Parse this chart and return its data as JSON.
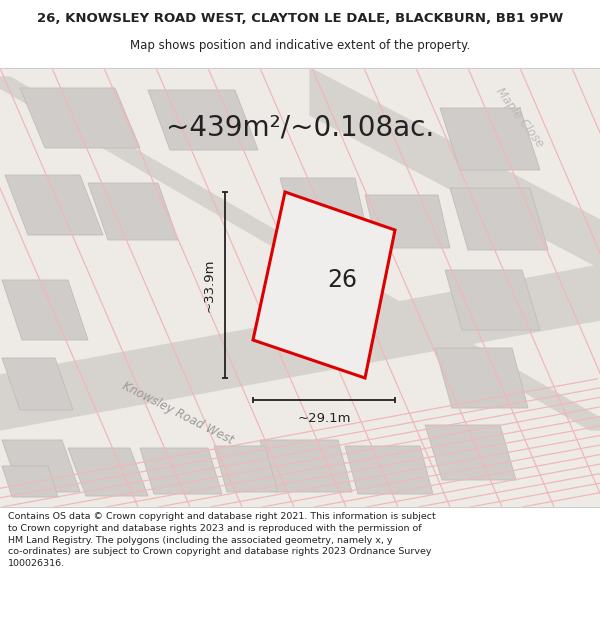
{
  "title_line1": "26, KNOWSLEY ROAD WEST, CLAYTON LE DALE, BLACKBURN, BB1 9PW",
  "title_line2": "Map shows position and indicative extent of the property.",
  "area_text": "~439m²/~0.108ac.",
  "property_number": "26",
  "dim_width": "~29.1m",
  "dim_height": "~33.9m",
  "road_label": "Knowsley Road West",
  "street_label": "Maple Close",
  "footer_wrapped": "Contains OS data © Crown copyright and database right 2021. This information is subject\nto Crown copyright and database rights 2023 and is reproduced with the permission of\nHM Land Registry. The polygons (including the associated geometry, namely x, y\nco-ordinates) are subject to Crown copyright and database rights 2023 Ordnance Survey\n100026316.",
  "map_bg": "#eeebe7",
  "road_color": "#d6d2ce",
  "building_color": "#d0ccca",
  "building_outline": "#c0bcb8",
  "property_fill": "#f0eeed",
  "property_edge": "#dd0000",
  "road_line_color": "#f0b8b8",
  "dim_line_color": "#222222",
  "text_dark": "#222222",
  "text_gray": "#999999",
  "footer_bg": "#ffffff",
  "title_bg": "#ffffff",
  "separator_color": "#cccccc"
}
